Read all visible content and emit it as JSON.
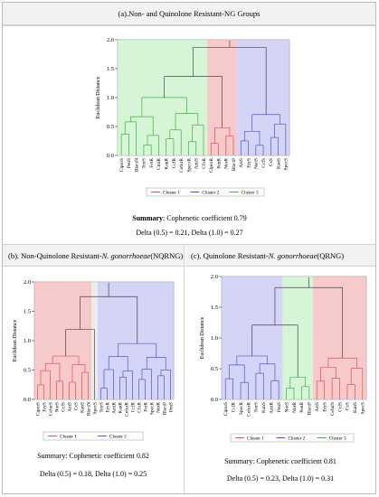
{
  "panels": {
    "a": {
      "title_prefix": "(a). ",
      "title": "Non- and Quinolone Resistant-NG Groups",
      "summary_label": "Summary",
      "summary_text": ": Cophenetic coefficient 0.79",
      "delta_text": "Delta (0.5) = 0.21, Delta (1.0) = 0.27"
    },
    "b": {
      "title_prefix": "(b). Non-Quinolone Resistant-",
      "title_italic": "N. gonorrhoeae",
      "title_suffix": " (NQRNG)",
      "summary_text": "Summary: Cophenetic coefficient 0.82",
      "delta_text": "Delta (0.5) = 0.18, Delta (1.0) = 0.25"
    },
    "c": {
      "title_prefix": "(c). Quinolone Resistant-",
      "title_italic": "N. gonorrhoeae",
      "title_suffix": " (QRNG)",
      "summary_text": "Summary: Cophenetic coefficient 0.81",
      "delta_text": "Delta (0.5) = 0.23, Delta (1.0) = 0.31"
    }
  },
  "chart_data": [
    {
      "type": "dendrogram",
      "panel": "a",
      "ylabel": "Euclidean Distance",
      "ylim": [
        0,
        2.0
      ],
      "yticks": [
        "0.0",
        "0.5",
        "1.0",
        "1.5",
        "2.0"
      ],
      "leaves": [
        "CiproS",
        "PenS",
        "BlactN",
        "TetrS",
        "FerR",
        "CmtR",
        "KanR",
        "CcfR",
        "CefurR",
        "SpectR",
        "AzitS",
        "CfxR",
        "CiproR",
        "PenR",
        "NorR",
        "BlactP",
        "AztS",
        "EryS",
        "NaoS",
        "CcfS",
        "CxS",
        "KanS",
        "SpecS"
      ],
      "clusters": [
        {
          "name": "Cluster 1",
          "color": "#f3b8b8",
          "line": "#e05050"
        },
        {
          "name": "Cluster 2",
          "color": "#c6c6f4",
          "line": "#5555c8"
        },
        {
          "name": "Cluster 3",
          "color": "#c8f0c8",
          "line": "#40b040"
        }
      ],
      "leaf_cluster": [
        3,
        3,
        3,
        3,
        3,
        3,
        3,
        3,
        3,
        3,
        3,
        3,
        1,
        1,
        1,
        1,
        2,
        2,
        2,
        2,
        2,
        2,
        2
      ],
      "root_height": 1.87
    },
    {
      "type": "dendrogram",
      "panel": "b",
      "ylabel": "Euclidean Distance",
      "ylim": [
        0,
        2.0
      ],
      "yticks": [
        "0.0",
        "0.5",
        "1.0",
        "1.5",
        "2.0"
      ],
      "leaves": [
        "CiproS",
        "EryS",
        "CefurS",
        "NorS",
        "CcfS",
        "AziS",
        "CxS",
        "KanS",
        "BlactN",
        "SpecS",
        "TetrS",
        "EryR",
        "AzitR",
        "KanR",
        "CefurR",
        "CcfR",
        "CfxR",
        "FerR",
        "SpecR",
        "NorR",
        "BlactP",
        "PenS"
      ],
      "clusters": [
        {
          "name": "Cluster 1",
          "color": "#f3b8b8",
          "line": "#e05050"
        },
        {
          "name": "Cluster 2",
          "color": "#c6c6f4",
          "line": "#5555c8"
        }
      ],
      "leaf_cluster": [
        1,
        1,
        1,
        1,
        1,
        1,
        1,
        1,
        1,
        0,
        2,
        2,
        2,
        2,
        2,
        2,
        2,
        2,
        2,
        2,
        2,
        2
      ],
      "root_height": 1.75
    },
    {
      "type": "dendrogram",
      "panel": "c",
      "ylabel": "Euclidean Distance",
      "ylim": [
        0,
        2.0
      ],
      "yticks": [
        "0.0",
        "0.5",
        "1.0",
        "1.5",
        "2.0"
      ],
      "leaves": [
        "CiproS",
        "CcfR",
        "SpecR",
        "CefurR",
        "TetrS",
        "KanS",
        "AzitR",
        "PenS",
        "NorS",
        "NorR",
        "PenR",
        "BlactP",
        "AztS",
        "EryS",
        "CefurS",
        "CcfS",
        "CxS",
        "KanS",
        "SpecS"
      ],
      "clusters": [
        {
          "name": "Cluster 1",
          "color": "#f3b8b8",
          "line": "#e05050"
        },
        {
          "name": "Cluster 2",
          "color": "#c6c6f4",
          "line": "#5555c8"
        },
        {
          "name": "Cluster 3",
          "color": "#c8f0c8",
          "line": "#40b040"
        }
      ],
      "leaf_cluster": [
        2,
        2,
        2,
        2,
        2,
        2,
        2,
        2,
        3,
        3,
        3,
        3,
        1,
        1,
        1,
        1,
        1,
        1,
        1
      ],
      "root_height": 1.82
    }
  ]
}
